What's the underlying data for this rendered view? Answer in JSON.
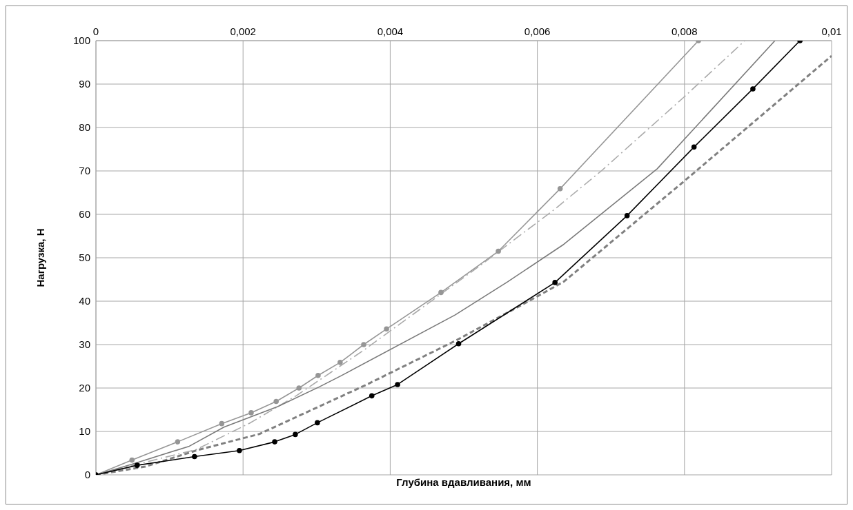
{
  "chart_data": {
    "type": "line",
    "xlabel": "Глубина вдавливания, мм",
    "ylabel": "Нагрузка, Н",
    "xlim": [
      0,
      0.01
    ],
    "xticks": [
      0,
      {
        "value": 0.002,
        "label": "0,002"
      },
      {
        "value": 0.004,
        "label": "0,004"
      },
      {
        "value": 0.006,
        "label": "0,006"
      },
      {
        "value": 0.008,
        "label": "0,008"
      },
      {
        "value": 0.01,
        "label": "0,01"
      }
    ],
    "ylim": [
      0,
      100
    ],
    "yticks": [
      0,
      10,
      20,
      30,
      40,
      50,
      60,
      70,
      80,
      90,
      100
    ],
    "grid": true,
    "series": [
      {
        "color": "#969696",
        "marker": "circle",
        "line_style": "solid",
        "x": [
          0,
          0.00049,
          0.00111,
          0.00171,
          0.00211,
          0.00245,
          0.00276,
          0.00302,
          0.00332,
          0.00364,
          0.00395,
          0.00469,
          0.00547,
          0.00631,
          0.00819
        ],
        "values": [
          0,
          3.4,
          7.6,
          11.8,
          14.3,
          16.9,
          20,
          22.9,
          25.9,
          30,
          33.6,
          42,
          51.5,
          65.9,
          100
        ]
      },
      {
        "color": "#aaaaaa",
        "marker": "none",
        "line_style": "dashdot",
        "x": [
          0,
          0.0005,
          0.00136,
          0.00209,
          0.00272,
          0.00364,
          0.00519,
          0.00623,
          0.00687,
          0.008,
          0.00882
        ],
        "values": [
          0,
          2.2,
          5.8,
          11.9,
          18.2,
          28.7,
          47.8,
          61.1,
          70,
          87.1,
          100
        ]
      },
      {
        "color": "#7a7a7a",
        "marker": "none",
        "line_style": "solid",
        "x": [
          0,
          0.0005,
          0.00127,
          0.00174,
          0.00247,
          0.00304,
          0.00333,
          0.00488,
          0.0056,
          0.00636,
          0.00763,
          0.00923
        ],
        "values": [
          0,
          2.5,
          6.6,
          11,
          15.7,
          20.3,
          22.8,
          36.8,
          44.5,
          53.1,
          70.5,
          100
        ]
      },
      {
        "color": "#808080",
        "marker": "none",
        "line_style": "dashed",
        "x": [
          0,
          0.00067,
          0.0014,
          0.00222,
          0.00367,
          0.0049,
          0.00586,
          0.00636,
          0.008,
          0.01
        ],
        "values": [
          0,
          1.9,
          5.8,
          9.4,
          20.7,
          31,
          39.8,
          44.5,
          67.7,
          96.5
        ]
      },
      {
        "color": "#000000",
        "marker": "circle",
        "line_style": "solid",
        "x": [
          0,
          0.00056,
          0.00134,
          0.00195,
          0.00243,
          0.00271,
          0.00301,
          0.00375,
          0.0041,
          0.00493,
          0.00624,
          0.00722,
          0.00813,
          0.00893,
          0.00957
        ],
        "values": [
          0,
          2.2,
          4.2,
          5.6,
          7.6,
          9.3,
          12,
          18.2,
          20.8,
          30.2,
          44.3,
          59.7,
          75.5,
          88.9,
          100
        ]
      }
    ]
  }
}
